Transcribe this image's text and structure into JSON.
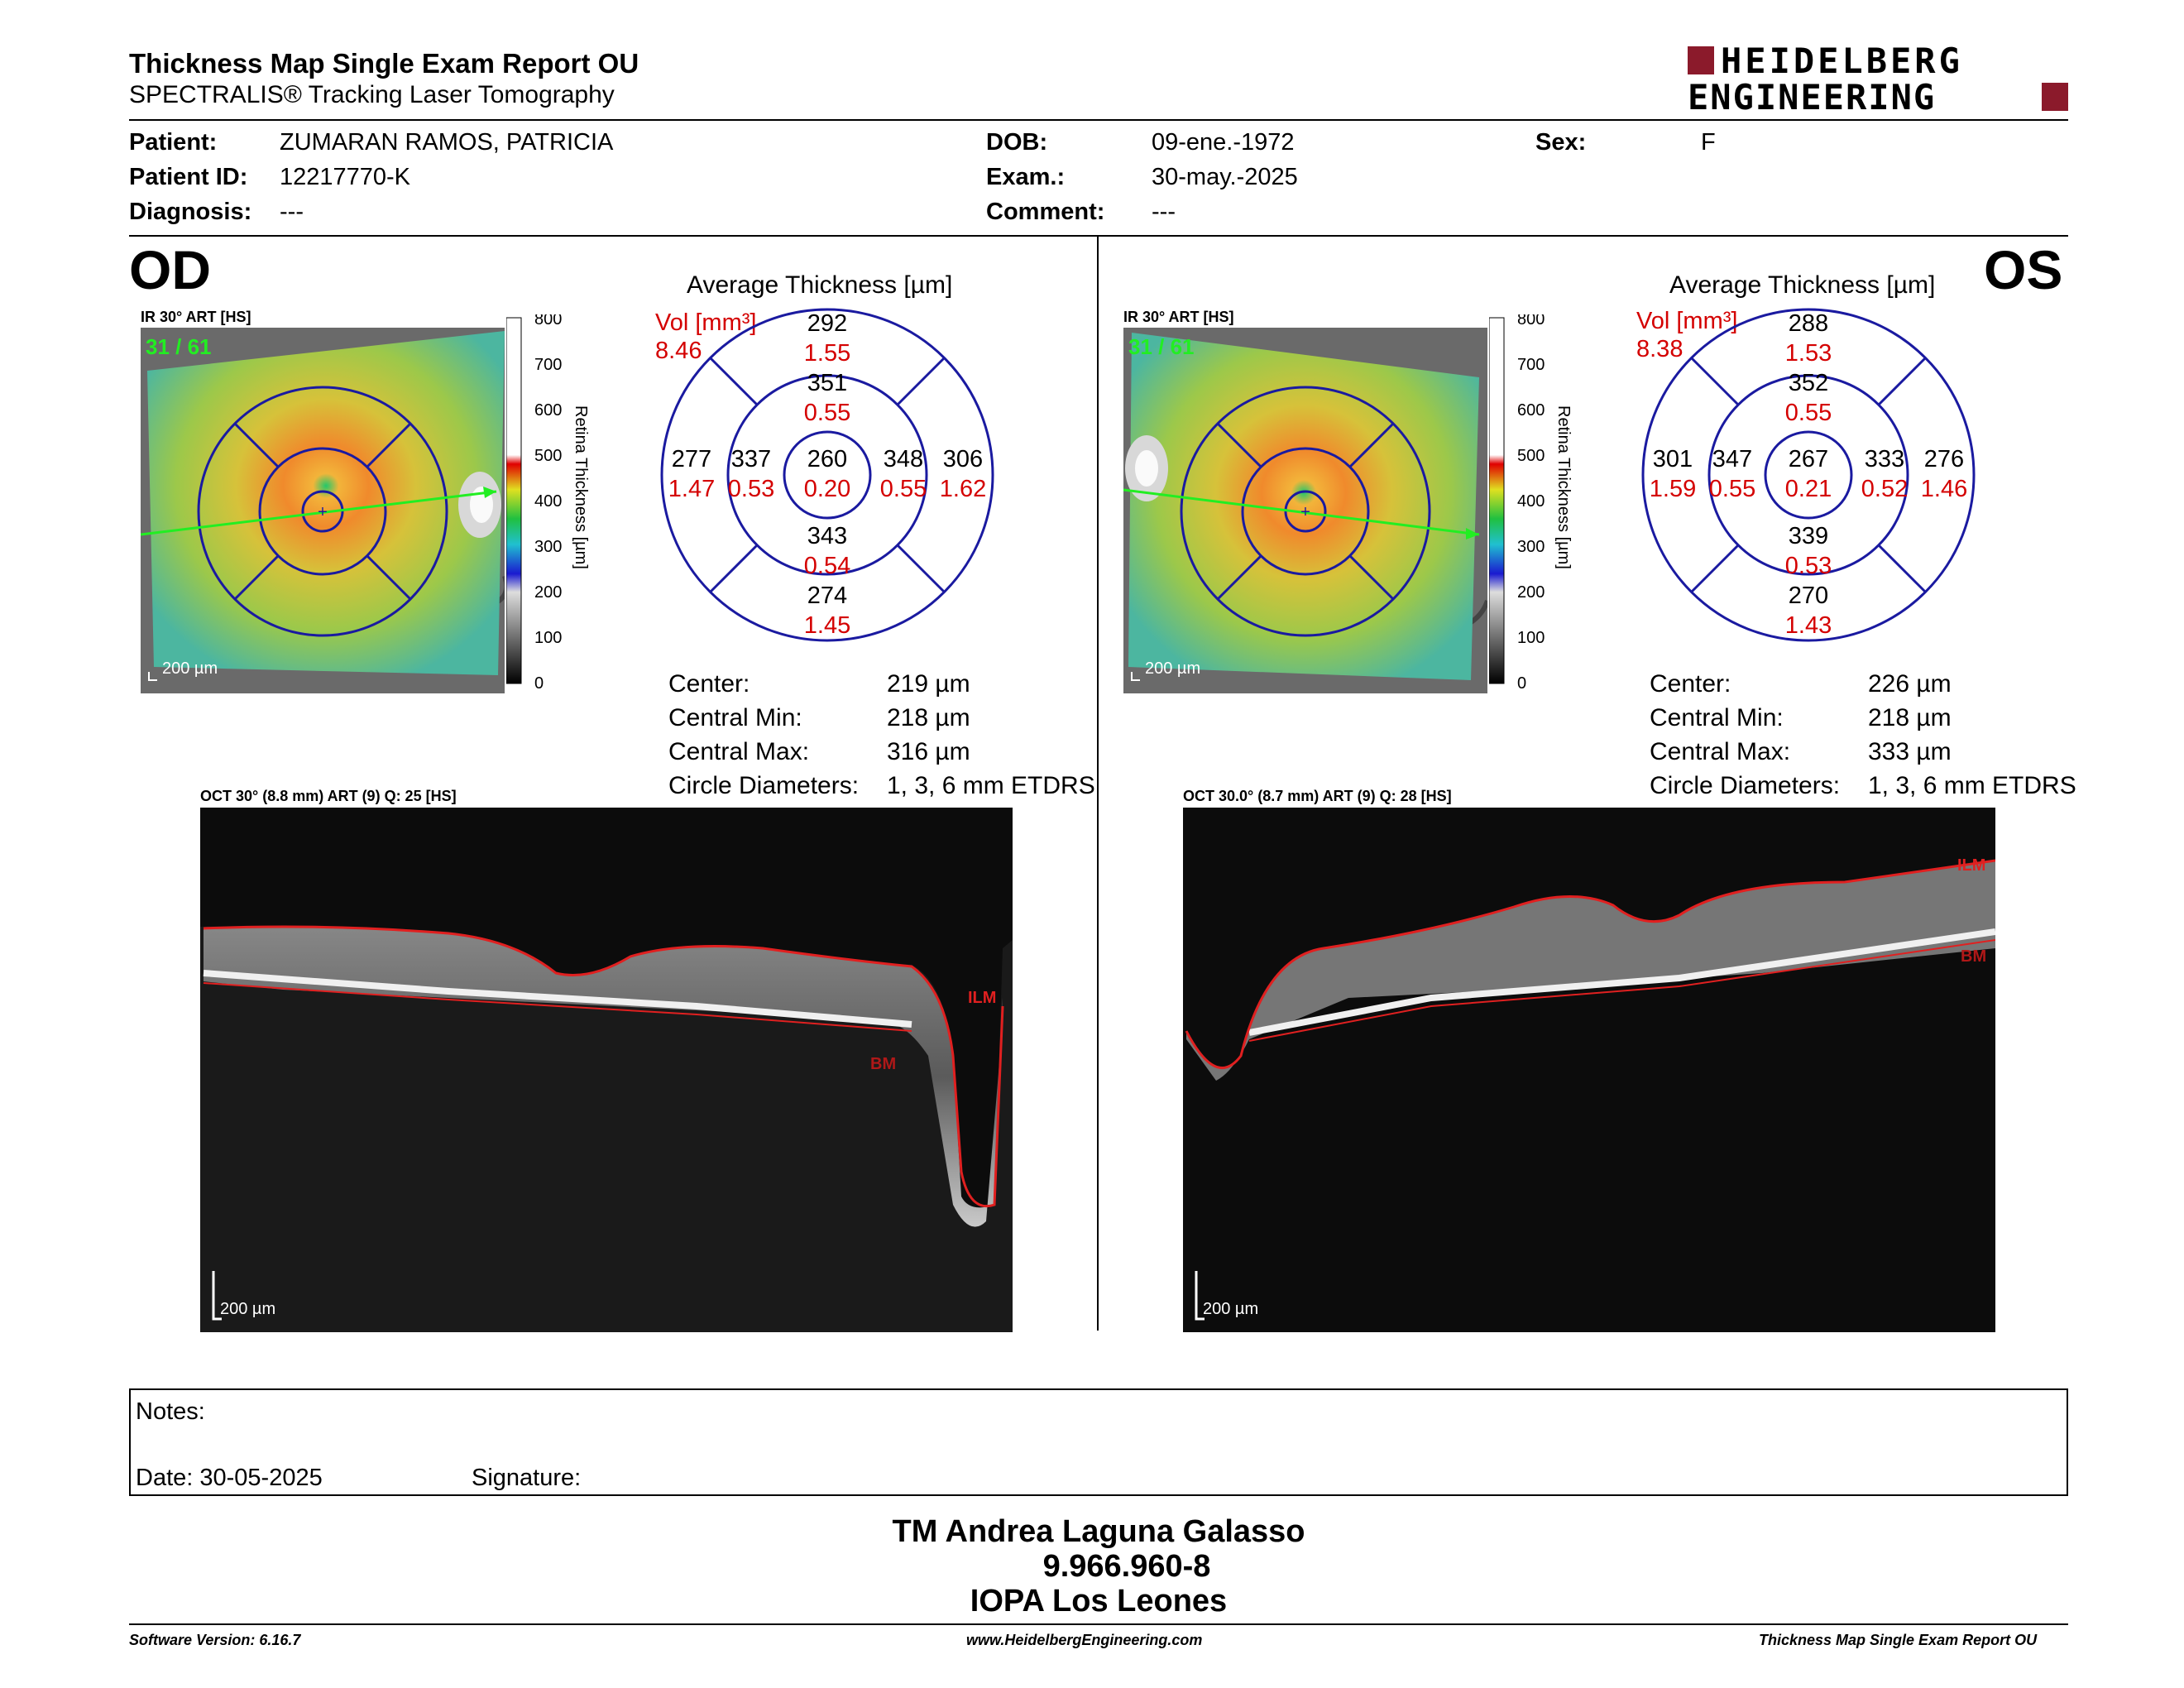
{
  "header": {
    "title": "Thickness Map Single Exam Report OU",
    "subtitle": "SPECTRALIS® Tracking Laser Tomography",
    "logo_line1": "HEIDELBERG",
    "logo_line2": "ENGINEERING"
  },
  "patient": {
    "patient_label": "Patient:",
    "patient_value": "ZUMARAN RAMOS, PATRICIA",
    "id_label": "Patient ID:",
    "id_value": "12217770-K",
    "diagnosis_label": "Diagnosis:",
    "diagnosis_value": "---",
    "dob_label": "DOB:",
    "dob_value": "09-ene.-1972",
    "exam_label": "Exam.:",
    "exam_value": "30-may.-2025",
    "comment_label": "Comment:",
    "comment_value": "---",
    "sex_label": "Sex:",
    "sex_value": "F"
  },
  "colors": {
    "accent_red": "#8b1a2b",
    "vol_red": "#d40000",
    "grid_blue": "#1a1aa0",
    "scan_green": "#22ee22",
    "seg_red": "#e02020"
  },
  "od": {
    "eye": "OD",
    "ir_label": "IR 30° ART [HS]",
    "frame": "31 / 61",
    "ir_scale": "200 µm",
    "colorbar_ticks": [
      "800",
      "700",
      "600",
      "500",
      "400",
      "300",
      "200",
      "100",
      "0"
    ],
    "colorbar_title": "Retina  Thickness [µm]",
    "avg_title": "Average Thickness [µm]",
    "vol_label": "Vol [mm³]",
    "vol_total": "8.46",
    "grid": {
      "center_t": "260",
      "center_v": "0.20",
      "inner_sup_t": "351",
      "inner_sup_v": "0.55",
      "inner_inf_t": "343",
      "inner_inf_v": "0.54",
      "inner_left_t": "337",
      "inner_left_v": "0.53",
      "inner_right_t": "348",
      "inner_right_v": "0.55",
      "outer_sup_t": "292",
      "outer_sup_v": "1.55",
      "outer_inf_t": "274",
      "outer_inf_v": "1.45",
      "outer_left_t": "277",
      "outer_left_v": "1.47",
      "outer_right_t": "306",
      "outer_right_v": "1.62"
    },
    "stats": [
      {
        "label": "Center:",
        "value": "219 µm"
      },
      {
        "label": "Central Min:",
        "value": "218 µm"
      },
      {
        "label": "Central Max:",
        "value": "316 µm"
      },
      {
        "label": "Circle Diameters:",
        "value": "1, 3, 6 mm ETDRS"
      }
    ],
    "oct_label": "OCT 30° (8.8 mm) ART (9) Q: 25 [HS]",
    "oct_scale": "200 µm",
    "ilm": "ILM",
    "bm": "BM"
  },
  "os": {
    "eye": "OS",
    "ir_label": "IR 30° ART [HS]",
    "frame": "31 / 61",
    "ir_scale": "200 µm",
    "colorbar_ticks": [
      "800",
      "700",
      "600",
      "500",
      "400",
      "300",
      "200",
      "100",
      "0"
    ],
    "colorbar_title": "Retina  Thickness [µm]",
    "avg_title": "Average Thickness [µm]",
    "vol_label": "Vol [mm³]",
    "vol_total": "8.38",
    "grid": {
      "center_t": "267",
      "center_v": "0.21",
      "inner_sup_t": "352",
      "inner_sup_v": "0.55",
      "inner_inf_t": "339",
      "inner_inf_v": "0.53",
      "inner_left_t": "347",
      "inner_left_v": "0.55",
      "inner_right_t": "333",
      "inner_right_v": "0.52",
      "outer_sup_t": "288",
      "outer_sup_v": "1.53",
      "outer_inf_t": "270",
      "outer_inf_v": "1.43",
      "outer_left_t": "301",
      "outer_left_v": "1.59",
      "outer_right_t": "276",
      "outer_right_v": "1.46"
    },
    "stats": [
      {
        "label": "Center:",
        "value": "226 µm"
      },
      {
        "label": "Central Min:",
        "value": "218 µm"
      },
      {
        "label": "Central Max:",
        "value": "333 µm"
      },
      {
        "label": "Circle Diameters:",
        "value": "1, 3, 6 mm ETDRS"
      }
    ],
    "oct_label": "OCT 30.0° (8.7 mm) ART (9) Q: 28 [HS]",
    "oct_scale": "200 µm",
    "ilm": "ILM",
    "bm": "BM"
  },
  "notes": {
    "notes_label": "Notes:",
    "date_label": "Date: 30-05-2025",
    "signature_label": "Signature:"
  },
  "technician": {
    "name": "TM Andrea Laguna Galasso",
    "rut": "9.966.960-8",
    "institution": "IOPA Los Leones"
  },
  "footer": {
    "software": "Software Version: 6.16.7",
    "url": "www.HeidelbergEngineering.com",
    "report": "Thickness Map Single Exam Report OU"
  }
}
